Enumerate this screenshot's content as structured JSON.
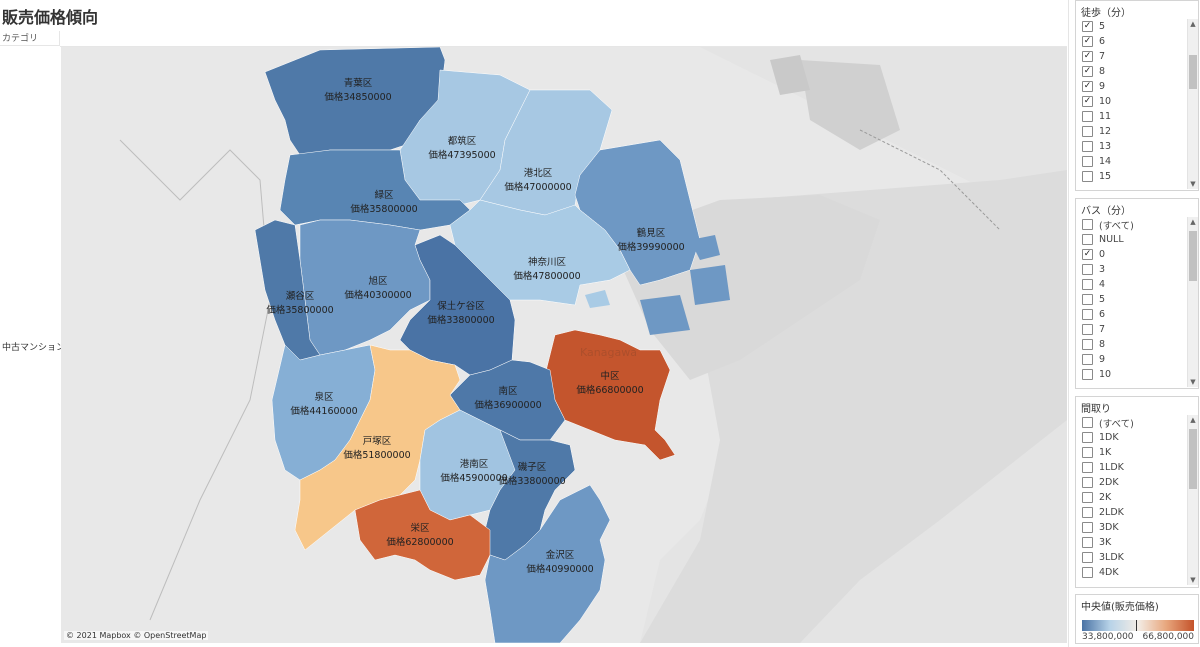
{
  "title": "販売価格傾向",
  "category_header": "カテゴリ",
  "row_label": "中古マンション",
  "map": {
    "credit": "© 2021 Mapbox © OpenStreetMap",
    "wards": [
      {
        "name": "青葉区",
        "price": "価格34850000"
      },
      {
        "name": "都筑区",
        "price": "価格47395000"
      },
      {
        "name": "港北区",
        "price": "価格47000000"
      },
      {
        "name": "緑区",
        "price": "価格35800000"
      },
      {
        "name": "鶴見区",
        "price": "価格39990000"
      },
      {
        "name": "神奈川区",
        "price": "価格47800000"
      },
      {
        "name": "旭区",
        "price": "価格40300000"
      },
      {
        "name": "瀬谷区",
        "price": "価格35800000"
      },
      {
        "name": "保土ケ谷区",
        "price": "価格33800000"
      },
      {
        "name": "中区",
        "price": "価格66800000"
      },
      {
        "name": "南区",
        "price": "価格36900000"
      },
      {
        "name": "泉区",
        "price": "価格44160000"
      },
      {
        "name": "戸塚区",
        "price": "価格51800000"
      },
      {
        "name": "港南区",
        "price": "価格45900000"
      },
      {
        "name": "磯子区",
        "price": "価格33800000"
      },
      {
        "name": "栄区",
        "price": "価格62800000"
      },
      {
        "name": "金沢区",
        "price": "価格40990000"
      }
    ],
    "watermark": "Kanagawa"
  },
  "filters": {
    "walk": {
      "title": "徒歩（分）",
      "items": [
        {
          "label": "5",
          "checked": true
        },
        {
          "label": "6",
          "checked": true
        },
        {
          "label": "7",
          "checked": true
        },
        {
          "label": "8",
          "checked": true
        },
        {
          "label": "9",
          "checked": true
        },
        {
          "label": "10",
          "checked": true
        },
        {
          "label": "11",
          "checked": false
        },
        {
          "label": "12",
          "checked": false
        },
        {
          "label": "13",
          "checked": false
        },
        {
          "label": "14",
          "checked": false
        },
        {
          "label": "15",
          "checked": false
        }
      ]
    },
    "bus": {
      "title": "バス（分）",
      "items": [
        {
          "label": "(すべて)",
          "checked": false
        },
        {
          "label": "NULL",
          "checked": false
        },
        {
          "label": "0",
          "checked": true
        },
        {
          "label": "3",
          "checked": false
        },
        {
          "label": "4",
          "checked": false
        },
        {
          "label": "5",
          "checked": false
        },
        {
          "label": "6",
          "checked": false
        },
        {
          "label": "7",
          "checked": false
        },
        {
          "label": "8",
          "checked": false
        },
        {
          "label": "9",
          "checked": false
        },
        {
          "label": "10",
          "checked": false
        }
      ]
    },
    "layout": {
      "title": "間取り",
      "items": [
        {
          "label": "(すべて)",
          "checked": false
        },
        {
          "label": "1DK",
          "checked": false
        },
        {
          "label": "1K",
          "checked": false
        },
        {
          "label": "1LDK",
          "checked": false
        },
        {
          "label": "2DK",
          "checked": false
        },
        {
          "label": "2K",
          "checked": false
        },
        {
          "label": "2LDK",
          "checked": false
        },
        {
          "label": "3DK",
          "checked": false
        },
        {
          "label": "3K",
          "checked": false
        },
        {
          "label": "3LDK",
          "checked": false
        },
        {
          "label": "4DK",
          "checked": false
        }
      ]
    }
  },
  "legend": {
    "title": "中央値(販売価格)",
    "min": "33,800,000",
    "max": "66,800,000",
    "colors": {
      "low": "#4a73a5",
      "mid": "#f3ede6",
      "high": "#c4522a"
    }
  }
}
